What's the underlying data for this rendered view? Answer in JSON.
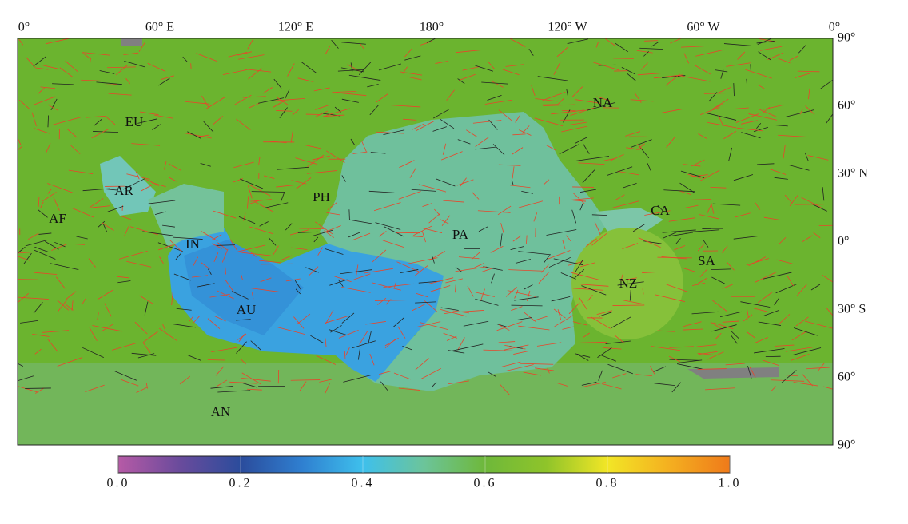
{
  "map": {
    "longitude_labels": [
      "0°",
      "60° E",
      "120° E",
      "180°",
      "120° W",
      "60° W",
      "0°"
    ],
    "latitude_labels": [
      "90°",
      "60°",
      "30° N",
      "0°",
      "30° S",
      "60°",
      "90°"
    ],
    "plate_labels": [
      "AF",
      "AR",
      "EU",
      "IN",
      "AU",
      "PH",
      "PA",
      "NA",
      "CA",
      "SA",
      "NZ",
      "AN"
    ]
  },
  "colorbar": {
    "range": [
      0,
      1
    ],
    "ticks": [
      {
        "value": 0,
        "label": "0.0"
      },
      {
        "value": 0.2,
        "label": "0.2"
      },
      {
        "value": 0.4,
        "label": "0.4"
      },
      {
        "value": 0.6,
        "label": "0.6"
      },
      {
        "value": 0.8,
        "label": "0.8"
      },
      {
        "value": 1,
        "label": "1.0"
      }
    ]
  }
}
